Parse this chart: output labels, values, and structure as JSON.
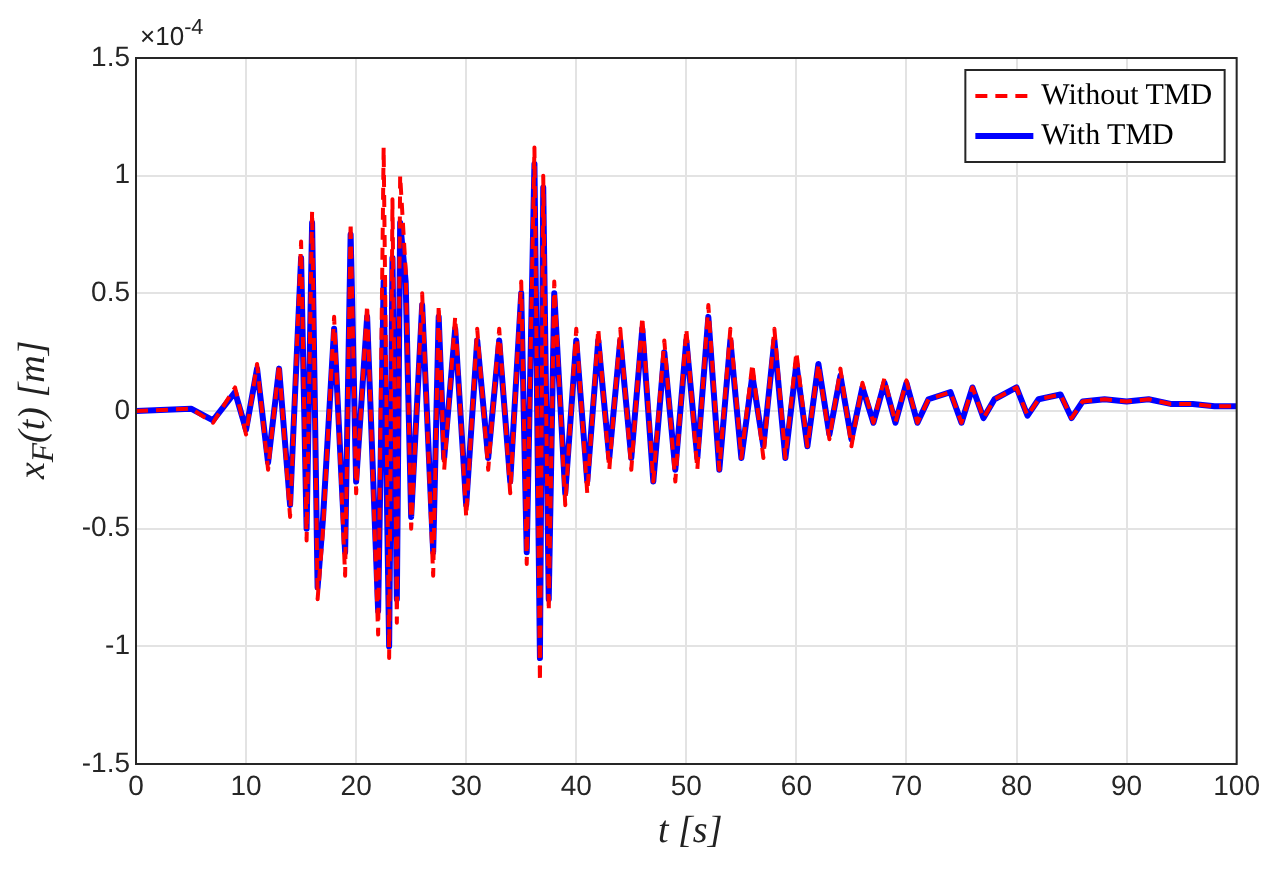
{
  "chart_data": {
    "type": "line",
    "xlabel": "t [s]",
    "ylabel": "x$_{F}$(t) [m]",
    "annotations": [
      "×10$^{-4}$"
    ],
    "xlim": [
      0,
      100
    ],
    "xticks": [
      0,
      10,
      20,
      30,
      40,
      50,
      60,
      70,
      80,
      90,
      100
    ],
    "ylim": [
      -1.5,
      1.5
    ],
    "yticks": [
      -1.5,
      -1,
      -0.5,
      0,
      0.5,
      1,
      1.5
    ],
    "grid": true,
    "legend": "top right",
    "marker": "none",
    "series": [
      {
        "name": "Without TMD",
        "color": "#ff0000",
        "line_style": "dashed",
        "x": [
          0,
          5,
          7,
          9,
          10,
          11,
          12,
          13,
          14,
          15,
          15.5,
          16,
          16.5,
          17,
          18,
          19,
          19.5,
          20,
          21,
          22,
          22.5,
          23,
          23.3,
          23.7,
          24,
          24.5,
          25,
          26,
          27,
          27.5,
          28,
          29,
          30,
          31,
          32,
          33,
          34,
          35,
          35.5,
          36.2,
          36.7,
          37,
          37.5,
          38,
          39,
          40,
          41,
          42,
          43,
          44,
          45,
          46,
          47,
          48,
          49,
          50,
          51,
          52,
          53,
          54,
          55,
          56,
          57,
          58,
          59,
          60,
          61,
          62,
          63,
          64,
          65,
          66,
          67,
          68,
          69,
          70,
          71,
          72,
          74,
          75,
          76,
          77,
          78,
          80,
          81,
          82,
          84,
          85,
          86,
          88,
          90,
          92,
          94,
          96,
          98,
          100
        ],
        "values": [
          0,
          0.01,
          -0.05,
          0.1,
          -0.1,
          0.2,
          -0.25,
          0.2,
          -0.45,
          0.72,
          -0.55,
          0.85,
          -0.8,
          -0.5,
          0.4,
          -0.7,
          0.8,
          -0.35,
          0.45,
          -0.95,
          1.12,
          -1.05,
          0.9,
          -0.9,
          1.0,
          0.6,
          -0.5,
          0.5,
          -0.7,
          0.45,
          -0.25,
          0.4,
          -0.45,
          0.35,
          -0.25,
          0.35,
          -0.35,
          0.55,
          -0.65,
          1.12,
          -1.15,
          1.0,
          -0.85,
          0.55,
          -0.4,
          0.35,
          -0.35,
          0.35,
          -0.25,
          0.35,
          -0.25,
          0.4,
          -0.3,
          0.3,
          -0.3,
          0.35,
          -0.25,
          0.45,
          -0.25,
          0.35,
          -0.2,
          0.2,
          -0.2,
          0.35,
          -0.2,
          0.25,
          -0.15,
          0.2,
          -0.12,
          0.18,
          -0.15,
          0.12,
          -0.05,
          0.14,
          -0.05,
          0.13,
          -0.05,
          0.05,
          0.08,
          -0.05,
          0.1,
          -0.03,
          0.05,
          0.1,
          -0.02,
          0.05,
          0.07,
          -0.03,
          0.04,
          0.05,
          0.04,
          0.05,
          0.03,
          0.03,
          0.02,
          0.02
        ]
      },
      {
        "name": "With TMD",
        "color": "#0000ff",
        "line_style": "solid",
        "x": [
          0,
          5,
          7,
          9,
          10,
          11,
          12,
          13,
          14,
          15,
          15.5,
          16,
          16.5,
          17,
          18,
          19,
          19.5,
          20,
          21,
          22,
          22.5,
          23,
          23.3,
          23.7,
          24,
          24.5,
          25,
          26,
          27,
          27.5,
          28,
          29,
          30,
          31,
          32,
          33,
          34,
          35,
          35.5,
          36.2,
          36.7,
          37,
          37.5,
          38,
          39,
          40,
          41,
          42,
          43,
          44,
          45,
          46,
          47,
          48,
          49,
          50,
          51,
          52,
          53,
          54,
          55,
          56,
          57,
          58,
          59,
          60,
          61,
          62,
          63,
          64,
          65,
          66,
          67,
          68,
          69,
          70,
          71,
          72,
          74,
          75,
          76,
          77,
          78,
          80,
          81,
          82,
          84,
          85,
          86,
          88,
          90,
          92,
          94,
          96,
          98,
          100
        ],
        "values": [
          0,
          0.01,
          -0.04,
          0.08,
          -0.08,
          0.18,
          -0.22,
          0.18,
          -0.4,
          0.65,
          -0.5,
          0.8,
          -0.75,
          -0.45,
          0.35,
          -0.6,
          0.75,
          -0.3,
          0.4,
          -0.85,
          0.55,
          -1.0,
          0.65,
          -0.8,
          0.8,
          0.55,
          -0.45,
          0.45,
          -0.6,
          0.4,
          -0.2,
          0.35,
          -0.4,
          0.3,
          -0.2,
          0.3,
          -0.3,
          0.5,
          -0.6,
          1.05,
          -1.05,
          0.95,
          -0.8,
          0.5,
          -0.35,
          0.3,
          -0.3,
          0.3,
          -0.2,
          0.3,
          -0.2,
          0.35,
          -0.3,
          0.25,
          -0.25,
          0.3,
          -0.2,
          0.4,
          -0.25,
          0.3,
          -0.2,
          0.15,
          -0.15,
          0.3,
          -0.2,
          0.2,
          -0.15,
          0.2,
          -0.1,
          0.15,
          -0.12,
          0.1,
          -0.05,
          0.12,
          -0.05,
          0.12,
          -0.05,
          0.05,
          0.08,
          -0.05,
          0.1,
          -0.03,
          0.05,
          0.1,
          -0.02,
          0.05,
          0.07,
          -0.03,
          0.04,
          0.05,
          0.04,
          0.05,
          0.03,
          0.03,
          0.02,
          0.02
        ]
      }
    ]
  }
}
